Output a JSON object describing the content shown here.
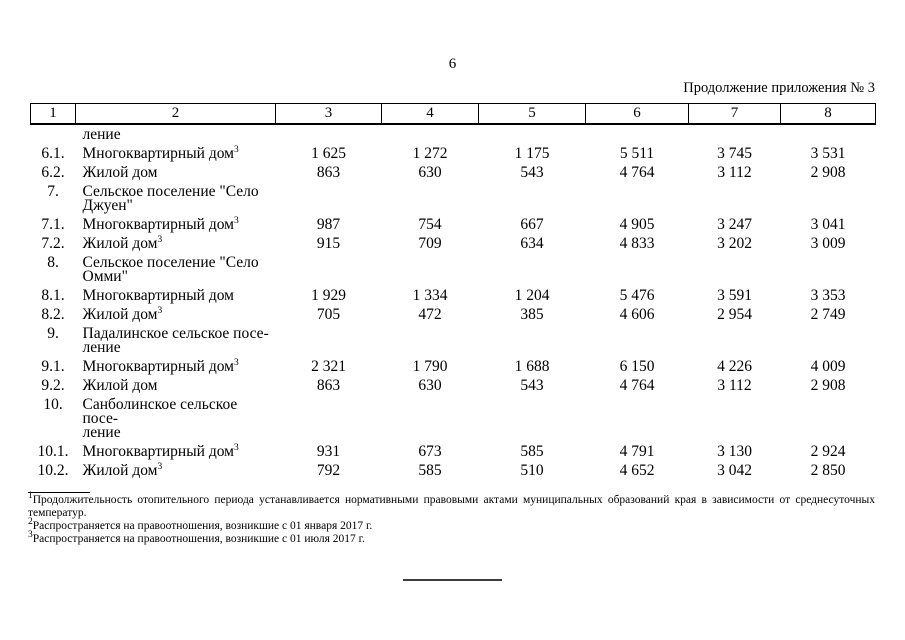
{
  "page": {
    "number": "6",
    "continuation_label": "Продолжение приложения № 3"
  },
  "table": {
    "header": [
      "1",
      "2",
      "3",
      "4",
      "5",
      "6",
      "7",
      "8"
    ],
    "rows": [
      {
        "num": "",
        "name": "ление",
        "sup": "",
        "values": [
          "",
          "",
          "",
          "",
          "",
          ""
        ]
      },
      {
        "num": "6.1.",
        "name": "Многоквартирный дом",
        "sup": "3",
        "values": [
          "1 625",
          "1 272",
          "1 175",
          "5 511",
          "3 745",
          "3 531"
        ]
      },
      {
        "num": "6.2.",
        "name": "Жилой дом",
        "sup": "",
        "values": [
          "863",
          "630",
          "543",
          "4 764",
          "3 112",
          "2 908"
        ]
      },
      {
        "num": "7.",
        "name": "Сельское поселение \"Село\nДжуен\"",
        "sup": "",
        "values": [
          "",
          "",
          "",
          "",
          "",
          ""
        ]
      },
      {
        "num": "7.1.",
        "name": "Многоквартирный дом",
        "sup": "3",
        "values": [
          "987",
          "754",
          "667",
          "4 905",
          "3 247",
          "3 041"
        ]
      },
      {
        "num": "7.2.",
        "name": "Жилой дом",
        "sup": "3",
        "values": [
          "915",
          "709",
          "634",
          "4 833",
          "3 202",
          "3 009"
        ]
      },
      {
        "num": "8.",
        "name": "Сельское поселение \"Село\nОмми\"",
        "sup": "",
        "values": [
          "",
          "",
          "",
          "",
          "",
          ""
        ]
      },
      {
        "num": "8.1.",
        "name": "Многоквартирный дом",
        "sup": "",
        "values": [
          "1 929",
          "1 334",
          "1 204",
          "5 476",
          "3 591",
          "3 353"
        ]
      },
      {
        "num": "8.2.",
        "name": "Жилой дом",
        "sup": "3",
        "values": [
          "705",
          "472",
          "385",
          "4 606",
          "2 954",
          "2 749"
        ]
      },
      {
        "num": "9.",
        "name": "Падалинское сельское посе-\nление",
        "sup": "",
        "values": [
          "",
          "",
          "",
          "",
          "",
          ""
        ]
      },
      {
        "num": "9.1.",
        "name": "Многоквартирный дом",
        "sup": "3",
        "values": [
          "2 321",
          "1 790",
          "1 688",
          "6 150",
          "4 226",
          "4 009"
        ]
      },
      {
        "num": "9.2.",
        "name": "Жилой дом",
        "sup": "",
        "values": [
          "863",
          "630",
          "543",
          "4 764",
          "3 112",
          "2 908"
        ]
      },
      {
        "num": "10.",
        "name": "Санболинское сельское посе-\nление",
        "sup": "",
        "values": [
          "",
          "",
          "",
          "",
          "",
          ""
        ]
      },
      {
        "num": "10.1.",
        "name": "Многоквартирный дом",
        "sup": "3",
        "values": [
          "931",
          "673",
          "585",
          "4 791",
          "3 130",
          "2 924"
        ]
      },
      {
        "num": "10.2.",
        "name": "Жилой дом",
        "sup": "3",
        "values": [
          "792",
          "585",
          "510",
          "4 652",
          "3 042",
          "2 850"
        ]
      }
    ]
  },
  "footnotes": [
    {
      "marker": "1",
      "text": "Продолжительность отопительного периода устанавливается нормативными правовыми актами муниципальных образований края в зависимости от среднесуточных температур."
    },
    {
      "marker": "2",
      "text": "Распространяется на правоотношения, возникшие с 01 января 2017 г."
    },
    {
      "marker": "3",
      "text": "Распространяется на правоотношения, возникшие с 01 июля 2017 г."
    }
  ]
}
